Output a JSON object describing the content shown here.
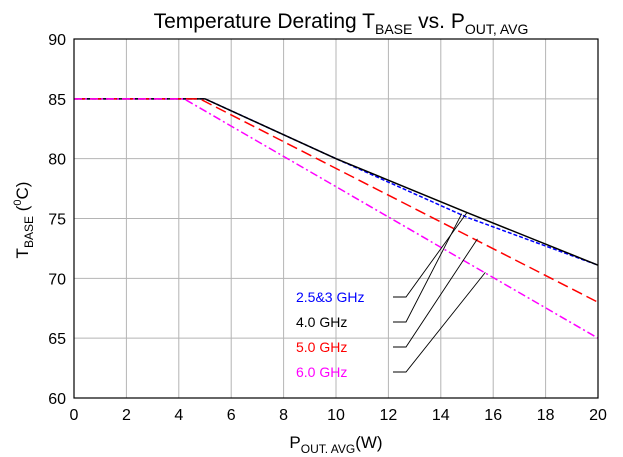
{
  "chart_data": {
    "type": "line",
    "title": {
      "main": "Temperature Derating T",
      "main_sub": "BASE",
      "middle": " vs. P",
      "middle_sub": "OUT, AVG"
    },
    "xlabel": {
      "main": "P",
      "sub": "OUT. AVG",
      "tail": "(W)"
    },
    "ylabel": {
      "main": "T",
      "sub": "BASE",
      "mid": " (",
      "sup": "0",
      "tail": "C)"
    },
    "xlim": [
      0,
      20
    ],
    "ylim": [
      60,
      90
    ],
    "xticks": [
      "0",
      "2",
      "4",
      "6",
      "8",
      "10",
      "12",
      "14",
      "16",
      "18",
      "20"
    ],
    "yticks": [
      "60",
      "65",
      "70",
      "75",
      "80",
      "85",
      "90"
    ],
    "grid": true,
    "series": [
      {
        "name": "2.5&3 GHz",
        "color": "#0000ff",
        "dash": "short-dash",
        "x": [
          0,
          5.0,
          10,
          15,
          20
        ],
        "y": [
          85,
          85,
          80,
          75.1,
          71.1
        ],
        "pointer_to": [
          15.0,
          75.5
        ]
      },
      {
        "name": "4.0 GHz",
        "color": "#000000",
        "dash": "solid",
        "x": [
          0,
          5.0,
          10,
          15,
          20
        ],
        "y": [
          85,
          85,
          80,
          75.5,
          71.1
        ],
        "pointer_to": [
          14.8,
          75.4
        ]
      },
      {
        "name": "5.0 GHz",
        "color": "#ff0000",
        "dash": "long-dash",
        "x": [
          0,
          4.8,
          20
        ],
        "y": [
          85,
          85,
          68
        ],
        "pointer_to": [
          15.4,
          73.3
        ]
      },
      {
        "name": "6.0 GHz",
        "color": "#ff00ff",
        "dash": "dash-dot",
        "x": [
          0,
          4.2,
          20
        ],
        "y": [
          85,
          85,
          65
        ],
        "pointer_to": [
          15.7,
          70.5
        ]
      }
    ],
    "legend": "lower-middle"
  }
}
